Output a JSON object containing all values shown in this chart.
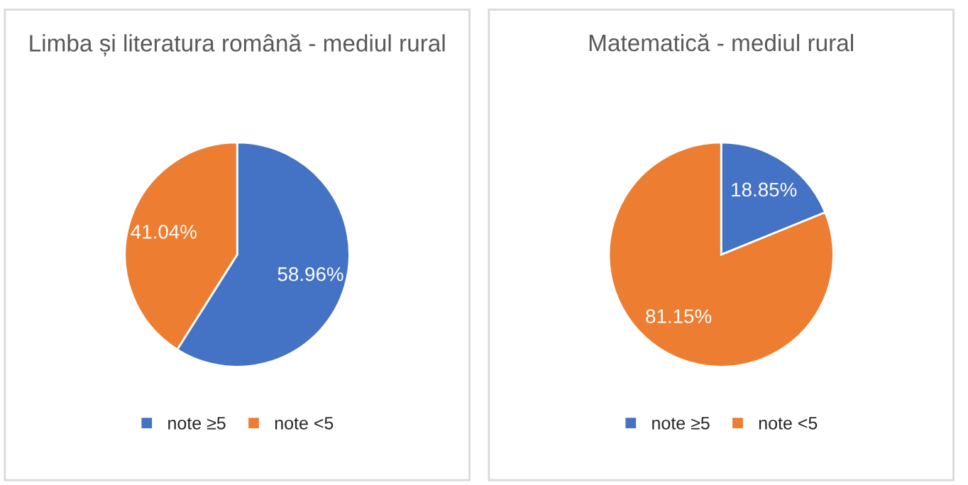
{
  "chart_data": [
    {
      "type": "pie",
      "title": "Limba și literatura română - mediul rural",
      "categories": [
        "note ≥5",
        "note <5"
      ],
      "values": [
        58.96,
        41.04
      ],
      "value_labels": [
        "58.96%",
        "41.04%"
      ],
      "colors": [
        "#4472c4",
        "#ed7d31"
      ],
      "legend": "bottom"
    },
    {
      "type": "pie",
      "title": "Matematică - mediul rural",
      "categories": [
        "note ≥5",
        "note <5"
      ],
      "values": [
        18.85,
        81.15
      ],
      "value_labels": [
        "18.85%",
        "81.15%"
      ],
      "colors": [
        "#4472c4",
        "#ed7d31"
      ],
      "legend": "bottom"
    }
  ]
}
